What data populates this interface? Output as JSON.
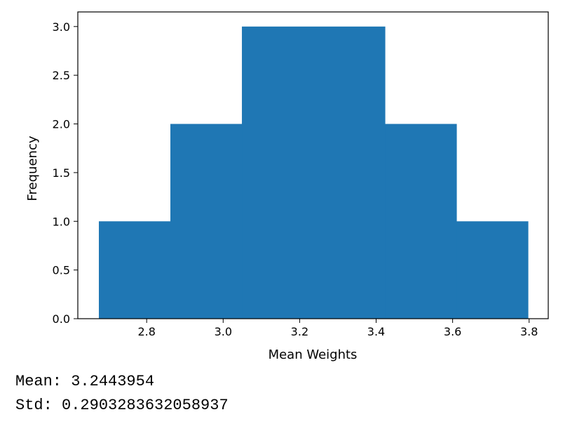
{
  "chart_data": {
    "type": "histogram",
    "title": "",
    "xlabel": "Mean Weights",
    "ylabel": "Frequency",
    "xlim": [
      2.62,
      3.85
    ],
    "ylim": [
      0.0,
      3.15
    ],
    "x_ticks": [
      "2.8",
      "3.0",
      "3.2",
      "3.4",
      "3.6",
      "3.8"
    ],
    "y_ticks": [
      "0.0",
      "0.5",
      "1.0",
      "1.5",
      "2.0",
      "2.5",
      "3.0"
    ],
    "bins": [
      {
        "start": 2.675,
        "end": 2.862,
        "count": 1
      },
      {
        "start": 2.862,
        "end": 3.049,
        "count": 2
      },
      {
        "start": 3.049,
        "end": 3.423,
        "count": 3
      },
      {
        "start": 3.423,
        "end": 3.61,
        "count": 2
      },
      {
        "start": 3.61,
        "end": 3.797,
        "count": 1
      }
    ],
    "bar_color": "#1f77b4",
    "grid": false,
    "legend": "none"
  },
  "output": {
    "mean_text": "Mean: 3.2443954",
    "std_text": "Std: 0.2903283632058937"
  }
}
